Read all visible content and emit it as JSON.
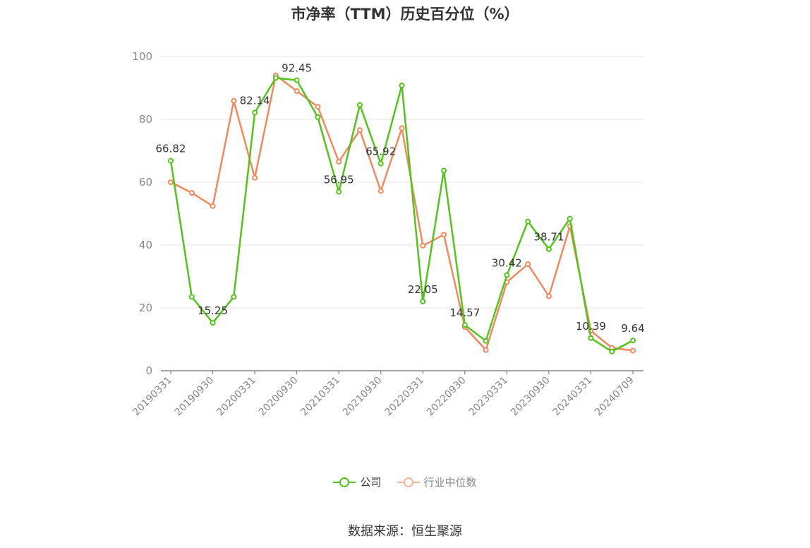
{
  "chart_data": {
    "type": "line",
    "title": "市净率（TTM）历史百分位（%）",
    "ylim": [
      0,
      100
    ],
    "yticks": [
      0,
      20,
      40,
      60,
      80,
      100
    ],
    "grid": true,
    "legend_position": "bottom",
    "x_tick_labels": [
      "20190331",
      "20190930",
      "20200331",
      "20200930",
      "20210331",
      "20210930",
      "20220331",
      "20220930",
      "20230331",
      "20230930",
      "20240331",
      "20240709"
    ],
    "series": [
      {
        "name": "公司",
        "color": "#52c41a",
        "values": [
          66.82,
          23.5,
          15.25,
          23.5,
          82.14,
          93.2,
          92.45,
          80.7,
          56.95,
          84.6,
          65.92,
          90.8,
          22.05,
          63.7,
          14.57,
          9.5,
          30.42,
          47.5,
          38.71,
          48.4,
          10.39,
          6.1,
          9.64
        ],
        "labels": {
          "0": "66.82",
          "2": "15.25",
          "4": "82.14",
          "6": "92.45",
          "8": "56.95",
          "10": "65.92",
          "12": "22.05",
          "14": "14.57",
          "16": "30.42",
          "18": "38.71",
          "20": "10.39",
          "22": "9.64"
        }
      },
      {
        "name": "行业中位数",
        "color": "#f08a5d",
        "values": [
          60.0,
          56.6,
          52.4,
          85.9,
          61.4,
          94.0,
          89.0,
          84.0,
          66.5,
          76.6,
          57.2,
          77.2,
          39.8,
          43.3,
          13.9,
          6.6,
          28.2,
          33.9,
          23.7,
          46.0,
          12.7,
          7.3,
          6.4
        ]
      }
    ]
  },
  "legend": [
    "公司",
    "行业中位数"
  ],
  "source_text": "数据来源：恒生聚源"
}
